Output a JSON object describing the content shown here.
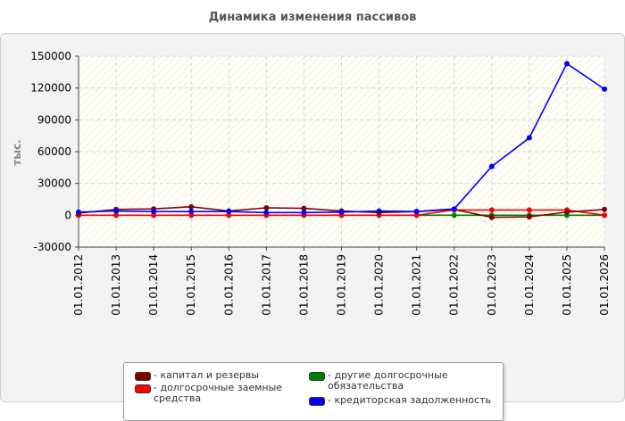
{
  "chart_data": {
    "type": "line",
    "title": "Динамика изменения пассивов",
    "ylabel": "тыс.",
    "xlabel": "",
    "categories": [
      "01.01.2012",
      "01.01.2013",
      "01.01.2014",
      "01.01.2015",
      "01.01.2016",
      "01.01.2017",
      "01.01.2018",
      "01.01.2019",
      "01.01.2020",
      "01.01.2021",
      "01.01.2022",
      "01.01.2023",
      "01.01.2024",
      "01.01.2025",
      "01.01.2026"
    ],
    "ylim": [
      -30000,
      150000
    ],
    "yticks": [
      "150000",
      "120000",
      "90000",
      "60000",
      "30000",
      "0",
      "-30000"
    ],
    "ytick_values": [
      150000,
      120000,
      90000,
      60000,
      30000,
      0,
      -30000
    ],
    "grid": true,
    "legend_position": "bottom",
    "series": [
      {
        "name": "капитал и резервы",
        "color": "#800000",
        "values": [
          2000,
          5500,
          6000,
          8000,
          4000,
          7000,
          6500,
          4000,
          2500,
          3500,
          5500,
          -2000,
          -1500,
          3000,
          5500
        ]
      },
      {
        "name": "долгосрочные заемные средства",
        "color": "#ff0000",
        "values": [
          0,
          0,
          0,
          0,
          0,
          0,
          0,
          0,
          0,
          0,
          5000,
          5000,
          5000,
          5000,
          0
        ]
      },
      {
        "name": "другие долгосрочные обязательства",
        "color": "#008000",
        "values": [
          0,
          0,
          0,
          0,
          0,
          0,
          0,
          0,
          0,
          0,
          0,
          0,
          0,
          0,
          0
        ]
      },
      {
        "name": "кредиторская задолженность",
        "color": "#0000ff",
        "values": [
          3000,
          4000,
          3500,
          3500,
          3500,
          2500,
          2500,
          3000,
          4000,
          3500,
          6000,
          46000,
          73000,
          143000,
          119000
        ]
      }
    ]
  }
}
